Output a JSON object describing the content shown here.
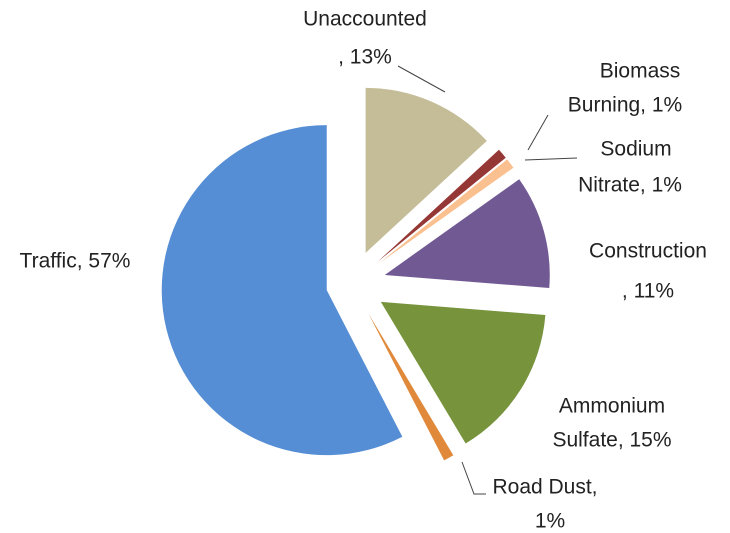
{
  "chart_data": {
    "type": "pie",
    "categories": [
      "Unaccounted",
      "Biomass Burning",
      "Sodium Nitrate",
      "Construction",
      "Ammonium Sulfate",
      "Road Dust",
      "Traffic"
    ],
    "values": [
      13,
      1,
      1,
      11,
      15,
      1,
      57
    ],
    "value_labels": [
      "13%",
      "1%",
      "1%",
      "11%",
      "15%",
      "1%",
      "57%"
    ],
    "colors": [
      "#c4bd97",
      "#953735",
      "#fac090",
      "#715a93",
      "#77933c",
      "#e0893a",
      "#558ed5"
    ]
  }
}
